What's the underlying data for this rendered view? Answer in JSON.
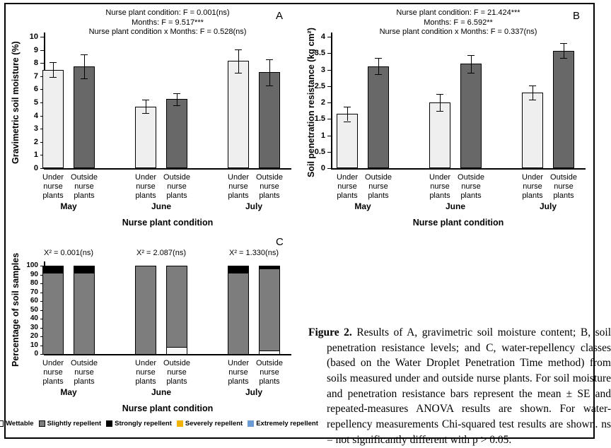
{
  "caption": {
    "label": "Figure 2.",
    "text": "Results of A, gravimetric soil moisture content; B, soil penetration resistance levels; and C, water-repellency classes (based on the Water Droplet Penetration Time method) from soils measured under and outside nurse plants. For soil moisture and penetration resistance bars represent the mean ± SE and repeated-measures ANOVA results are shown. For water-repellency measurements Chi-squared test results are shown. ns = not significantly different with p > 0.05."
  },
  "colors": {
    "under_bar": "#efefef",
    "outside_bar": "#686868",
    "slightly_repellent": "#7d7d7d",
    "strongly_repellent": "#000000",
    "wettable": "#f7f7f7",
    "severely_repellent": "#f2b200",
    "extremely_repellent": "#6b9bd2"
  },
  "chart_data": [
    {
      "panel": "A",
      "type": "bar",
      "stats_lines": [
        "Nurse plant condition: F = 0.001(ns)",
        "Months: F = 9.517***",
        "Nurse plant condition x Months: F = 0.528(ns)"
      ],
      "ylabel": "Gravimetric soil moisture (%)",
      "xlabel": "Nurse plant condition",
      "ylim": [
        0,
        10
      ],
      "ytick_step": 1,
      "groups": [
        "May",
        "June",
        "July"
      ],
      "bar_labels": [
        "Under\nnurse\nplants",
        "Outside\nnurse\nplants"
      ],
      "series": [
        {
          "name": "Under nurse plants",
          "color": "#efefef",
          "values": [
            7.5,
            4.7,
            8.15
          ],
          "errors": [
            0.55,
            0.5,
            0.9
          ]
        },
        {
          "name": "Outside nurse plants",
          "color": "#686868",
          "values": [
            7.75,
            5.25,
            7.3
          ],
          "errors": [
            0.9,
            0.45,
            1.0
          ]
        }
      ]
    },
    {
      "panel": "B",
      "type": "bar",
      "stats_lines": [
        "Nurse plant condition: F = 21.424***",
        "Months: F = 6.592**",
        "Nurse plant condition x Months: F = 0.337(ns)"
      ],
      "ylabel": "Soil penetration resistance (kg cm²)",
      "xlabel": "Nurse plant condition",
      "ylim": [
        0,
        4
      ],
      "ytick_step": 0.5,
      "groups": [
        "May",
        "June",
        "July"
      ],
      "bar_labels": [
        "Under\nnurse\nplants",
        "Outside\nnurse\nplants"
      ],
      "series": [
        {
          "name": "Under nurse plants",
          "color": "#efefef",
          "values": [
            1.65,
            2.0,
            2.3
          ],
          "errors": [
            0.22,
            0.25,
            0.22
          ]
        },
        {
          "name": "Outside nurse plants",
          "color": "#686868",
          "values": [
            3.1,
            3.18,
            3.58
          ],
          "errors": [
            0.25,
            0.27,
            0.22
          ]
        }
      ]
    },
    {
      "panel": "C",
      "type": "stacked-bar",
      "annotations": [
        "X² = 0.001(ns)",
        "X² = 2.087(ns)",
        "X² = 1.330(ns)"
      ],
      "ylabel": "Percentage of soil samples",
      "xlabel": "Nurse plant condition",
      "ylim": [
        0,
        100
      ],
      "ytick_step": 10,
      "groups": [
        "May",
        "June",
        "July"
      ],
      "bar_labels": [
        "Under\nnurse\nplants",
        "Outside\nnurse\nplants"
      ],
      "bars": [
        "May Under",
        "May Outside",
        "June Under",
        "June Outside",
        "July Under",
        "July Outside"
      ],
      "series": [
        {
          "name": "Wettable",
          "color": "#f7f7f7",
          "values": [
            0,
            0,
            0,
            8,
            0,
            4
          ]
        },
        {
          "name": "Slightly repellent",
          "color": "#7d7d7d",
          "values": [
            92,
            92,
            100,
            92,
            92,
            93
          ]
        },
        {
          "name": "Strongly repellent",
          "color": "#000000",
          "values": [
            8,
            8,
            0,
            0,
            8,
            3
          ]
        },
        {
          "name": "Severely repellent",
          "color": "#f2b200",
          "values": [
            0,
            0,
            0,
            0,
            0,
            0
          ]
        },
        {
          "name": "Extremely repellent",
          "color": "#6b9bd2",
          "values": [
            0,
            0,
            0,
            0,
            0,
            0
          ]
        }
      ],
      "legend": [
        {
          "label": "Wettable",
          "color": "#ffffff",
          "border": "#000000"
        },
        {
          "label": "Slightly repellent",
          "color": "#7d7d7d",
          "border": "#000000"
        },
        {
          "label": "Strongly repellent",
          "color": "#000000",
          "border": "#000000"
        },
        {
          "label": "Severely repellent",
          "color": "#f2b200",
          "border": "#f2b200"
        },
        {
          "label": "Extremely repellent",
          "color": "#6b9bd2",
          "border": "#6b9bd2"
        }
      ]
    }
  ]
}
